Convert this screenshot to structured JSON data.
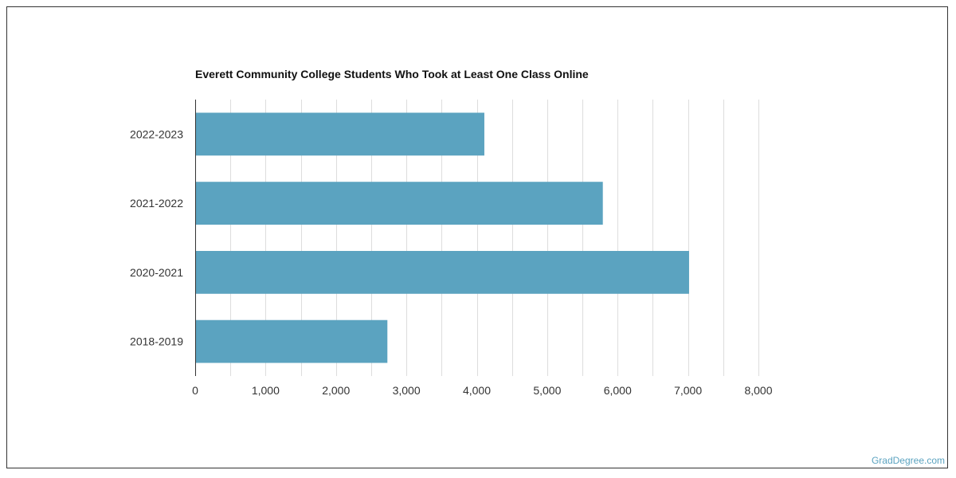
{
  "chart_data": {
    "type": "bar",
    "orientation": "horizontal",
    "title": "Everett Community College Students Who Took at Least One Class Online",
    "categories": [
      "2022-2023",
      "2021-2022",
      "2020-2021",
      "2018-2019"
    ],
    "values": [
      4107,
      5790,
      7015,
      2730
    ],
    "xlim": [
      0,
      8000
    ],
    "xticks": [
      0,
      1000,
      2000,
      3000,
      4000,
      5000,
      6000,
      7000,
      8000
    ],
    "xtick_labels": [
      "0",
      "1,000",
      "2,000",
      "3,000",
      "4,000",
      "5,000",
      "6,000",
      "7,000",
      "8,000"
    ],
    "grid": true,
    "bar_color": "#5ba3c0"
  },
  "watermark": "GradDegree.com"
}
